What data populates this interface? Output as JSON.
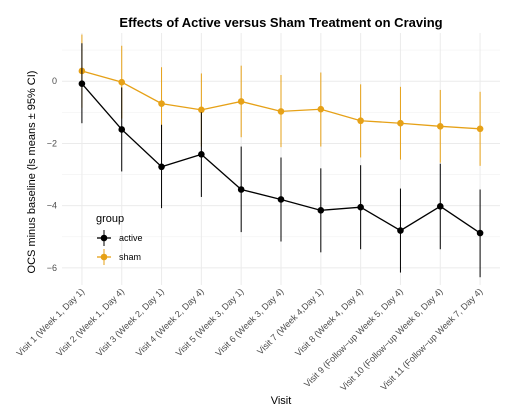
{
  "chart_data": {
    "type": "line",
    "title": "Effects of Active versus Sham Treatment on Craving",
    "xlabel": "Visit",
    "ylabel": "OCS minus baseline (ls means ± 95% CI)",
    "categories": [
      "Visit 1 (Week 1, Day 1)",
      "Visit 2 (Week 1, Day 4)",
      "Visit 3 (Week 2, Day 1)",
      "Visit 4 (Week 2, Day 4)",
      "Visit 5 (Week 3, Day 1)",
      "Visit 6 (Week 3, Day 4)",
      "Visit 7 (Week 4,Day 1)",
      "Visit 8 (Week 4, Day 4)",
      "Visit 9 (Follow−up Week 5, Day 4)",
      "Visit 10 (Follow−up Week 6, Day 4)",
      "Visit 11 (Follow−up Week 7, Day 4)"
    ],
    "yticks": [
      "0",
      "−2",
      "−4",
      "−6"
    ],
    "ytick_values": [
      0,
      -2,
      -4,
      -6
    ],
    "ylim": [
      -6.55,
      1.55
    ],
    "grid": true,
    "legend": {
      "title": "group",
      "placement": "left-inside"
    },
    "series": [
      {
        "name": "active",
        "color": "#000000",
        "values": [
          -0.08,
          -1.55,
          -2.75,
          -2.35,
          -3.48,
          -3.8,
          -4.15,
          -4.05,
          -4.8,
          -4.02,
          -4.88
        ],
        "lower": [
          -1.35,
          -2.9,
          -4.08,
          -3.72,
          -4.85,
          -5.15,
          -5.5,
          -5.4,
          -6.15,
          -5.4,
          -6.3
        ],
        "upper": [
          1.22,
          -0.2,
          -1.4,
          -1.0,
          -2.1,
          -2.45,
          -2.8,
          -2.7,
          -3.45,
          -2.65,
          -3.48
        ]
      },
      {
        "name": "sham",
        "color": "#E6A117",
        "values": [
          0.33,
          -0.03,
          -0.72,
          -0.92,
          -0.65,
          -0.97,
          -0.9,
          -1.27,
          -1.35,
          -1.45,
          -1.53
        ],
        "lower": [
          -0.85,
          -1.2,
          -1.9,
          -2.1,
          -1.8,
          -2.12,
          -2.1,
          -2.45,
          -2.52,
          -2.62,
          -2.72
        ],
        "upper": [
          1.5,
          1.14,
          0.45,
          0.25,
          0.5,
          0.2,
          0.28,
          -0.1,
          -0.18,
          -0.28,
          -0.34
        ]
      }
    ]
  }
}
